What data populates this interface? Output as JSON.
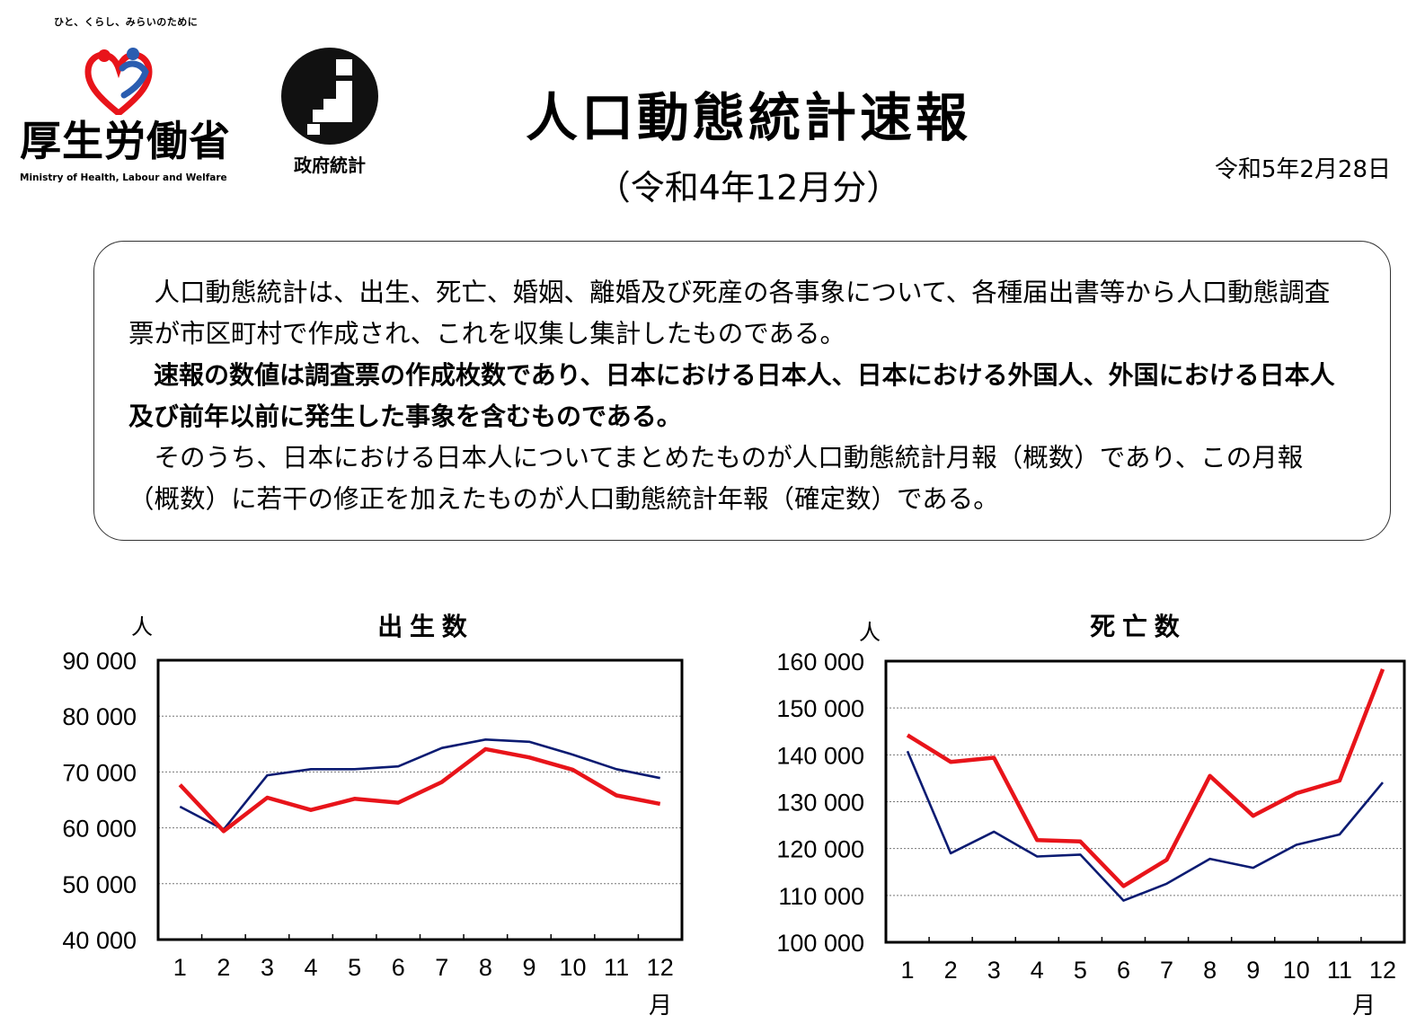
{
  "header": {
    "tagline": "ひと、くらし、みらいのために",
    "ministry_name": "厚生労働省",
    "ministry_name_en": "Ministry of Health, Labour and Welfare",
    "stat_logo_label": "政府統計",
    "title": "人口動態統計速報",
    "subtitle": "（令和4年12月分）",
    "date": "令和5年2月28日"
  },
  "notice": {
    "para1": "人口動態統計は、出生、死亡、婚姻、離婚及び死産の各事象について、各種届出書等から人口動態調査票が市区町村で作成され、これを収集し集計したものである。",
    "para2": "速報の数値は調査票の作成枚数であり、日本における日本人、日本における外国人、外国における日本人及び前年以前に発生した事象を含むものである。",
    "para3": "そのうち、日本における日本人についてまとめたものが人口動態統計月報（概数）であり、この月報（概数）に若干の修正を加えたものが人口動態統計年報（確定数）である。"
  },
  "colors": {
    "current_year": "#e8141a",
    "previous_year": "#0b1b72",
    "emblem_red": "#e8141a",
    "emblem_blue": "#2a5db0",
    "grid": "#777777"
  },
  "chart_data": [
    {
      "type": "line",
      "title": "出 生 数",
      "ylabel": "人",
      "xlabel": "月",
      "categories": [
        "1",
        "2",
        "3",
        "4",
        "5",
        "6",
        "7",
        "8",
        "9",
        "10",
        "11",
        "12"
      ],
      "ylim": [
        40000,
        90000
      ],
      "yticks": [
        40000,
        50000,
        60000,
        70000,
        80000,
        90000
      ],
      "ytick_labels": [
        "40 000",
        "50 000",
        "60 000",
        "70 000",
        "80 000",
        "90 000"
      ],
      "grid": true,
      "series": [
        {
          "color": "#0b1b72",
          "values": [
            63800,
            59700,
            69400,
            70500,
            70500,
            71000,
            74300,
            75800,
            75400,
            73100,
            70500,
            68900
          ]
        },
        {
          "color": "#e8141a",
          "values": [
            67700,
            59400,
            65400,
            63200,
            65200,
            64500,
            68200,
            74100,
            72600,
            70400,
            65800,
            64300
          ]
        }
      ]
    },
    {
      "type": "line",
      "title": "死 亡 数",
      "ylabel": "人",
      "xlabel": "月",
      "categories": [
        "1",
        "2",
        "3",
        "4",
        "5",
        "6",
        "7",
        "8",
        "9",
        "10",
        "11",
        "12"
      ],
      "ylim": [
        100000,
        160000
      ],
      "yticks": [
        100000,
        110000,
        120000,
        130000,
        140000,
        150000,
        160000
      ],
      "ytick_labels": [
        "100 000",
        "110 000",
        "120 000",
        "130 000",
        "140 000",
        "150 000",
        "160 000"
      ],
      "grid": true,
      "series": [
        {
          "color": "#0b1b72",
          "values": [
            140800,
            119000,
            123600,
            118300,
            118700,
            108900,
            112500,
            117800,
            115900,
            120800,
            123000,
            134100
          ]
        },
        {
          "color": "#e8141a",
          "values": [
            144200,
            138500,
            139400,
            121800,
            121500,
            112000,
            117600,
            135500,
            127000,
            131800,
            134500,
            158300
          ]
        }
      ]
    }
  ]
}
